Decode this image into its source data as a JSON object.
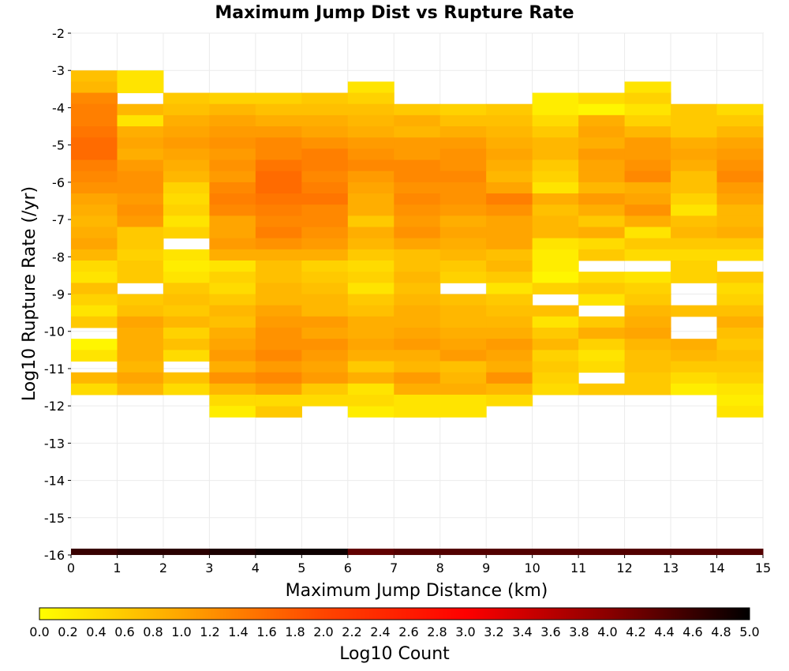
{
  "chart_data": {
    "type": "heatmap",
    "title": "Maximum Jump Dist vs Rupture Rate",
    "xlabel": "Maximum Jump Distance (km)",
    "ylabel": "Log10 Rupture Rate (/yr)",
    "xlim": [
      0,
      15
    ],
    "ylim": [
      -16,
      -2
    ],
    "x_ticks": [
      "0",
      "1",
      "2",
      "3",
      "4",
      "5",
      "6",
      "7",
      "8",
      "9",
      "10",
      "11",
      "12",
      "13",
      "14",
      "15"
    ],
    "y_ticks": [
      "-2",
      "-3",
      "-4",
      "-5",
      "-6",
      "-7",
      "-8",
      "-9",
      "-10",
      "-11",
      "-12",
      "-13",
      "-14",
      "-15",
      "-16"
    ],
    "x_bins": [
      0,
      1,
      2,
      3,
      4,
      5,
      6,
      7,
      8,
      9,
      10,
      11,
      12,
      13,
      14
    ],
    "y_bins": [
      -3.0,
      -3.3,
      -3.6,
      -3.9,
      -4.2,
      -4.5,
      -4.8,
      -5.1,
      -5.4,
      -5.7,
      -6.0,
      -6.3,
      -6.6,
      -6.9,
      -7.2,
      -7.5,
      -7.8,
      -8.1,
      -8.4,
      -8.7,
      -9.0,
      -9.3,
      -9.6,
      -9.9,
      -10.2,
      -10.5,
      -10.8,
      -11.1,
      -11.4,
      -11.7,
      -12.0
    ],
    "bin_width_x": 1,
    "bin_height_y": 0.3,
    "values": [
      [
        0.7,
        0.3,
        null,
        null,
        null,
        null,
        null,
        null,
        null,
        null,
        null,
        null,
        null,
        null,
        null
      ],
      [
        0.8,
        0.3,
        null,
        null,
        null,
        null,
        0.3,
        null,
        null,
        null,
        null,
        null,
        0.3,
        null,
        null
      ],
      [
        1.3,
        null,
        0.6,
        0.5,
        0.5,
        0.6,
        0.5,
        null,
        null,
        null,
        0.2,
        0.4,
        0.5,
        null,
        null
      ],
      [
        1.4,
        0.8,
        0.7,
        0.8,
        0.7,
        0.7,
        0.7,
        0.6,
        0.5,
        0.6,
        0.2,
        0.1,
        0.3,
        0.6,
        0.4
      ],
      [
        1.4,
        0.3,
        0.9,
        1.0,
        0.9,
        0.9,
        0.8,
        0.9,
        0.7,
        0.7,
        0.4,
        0.9,
        0.5,
        0.6,
        0.6
      ],
      [
        1.5,
        0.9,
        1.0,
        1.1,
        1.1,
        1.0,
        0.9,
        0.8,
        0.9,
        0.8,
        0.6,
        1.0,
        0.8,
        0.6,
        0.8
      ],
      [
        1.6,
        1.0,
        1.1,
        1.2,
        1.3,
        1.2,
        1.1,
        1.1,
        1.1,
        0.9,
        0.8,
        0.9,
        1.1,
        0.9,
        1.0
      ],
      [
        1.6,
        0.9,
        1.0,
        1.1,
        1.3,
        1.4,
        1.2,
        1.1,
        1.2,
        1.0,
        0.8,
        1.1,
        1.1,
        1.0,
        1.1
      ],
      [
        1.4,
        1.1,
        0.9,
        1.2,
        1.5,
        1.4,
        1.3,
        1.3,
        1.2,
        0.9,
        0.6,
        1.0,
        1.2,
        0.9,
        1.2
      ],
      [
        1.3,
        1.2,
        0.8,
        1.1,
        1.6,
        1.3,
        1.1,
        1.3,
        1.3,
        0.8,
        0.5,
        1.0,
        1.3,
        0.7,
        1.3
      ],
      [
        1.2,
        1.2,
        0.5,
        1.3,
        1.6,
        1.4,
        1.0,
        1.2,
        1.2,
        1.0,
        0.3,
        0.8,
        0.9,
        0.7,
        1.1
      ],
      [
        1.0,
        1.1,
        0.4,
        1.4,
        1.5,
        1.5,
        0.9,
        1.3,
        1.2,
        1.4,
        0.9,
        1.1,
        1.0,
        0.5,
        1.0
      ],
      [
        0.9,
        1.2,
        0.5,
        1.3,
        1.4,
        1.3,
        0.9,
        1.2,
        1.1,
        1.2,
        0.7,
        0.9,
        1.2,
        0.3,
        0.8
      ],
      [
        0.8,
        1.1,
        0.3,
        1.0,
        1.3,
        1.3,
        0.6,
        1.1,
        0.9,
        1.0,
        0.8,
        0.6,
        0.9,
        0.7,
        0.8
      ],
      [
        0.9,
        0.6,
        0.5,
        1.0,
        1.4,
        1.2,
        0.9,
        1.2,
        1.0,
        1.0,
        0.8,
        0.9,
        0.3,
        0.8,
        0.9
      ],
      [
        1.0,
        0.6,
        null,
        1.1,
        1.2,
        1.1,
        0.8,
        1.0,
        0.9,
        1.0,
        0.3,
        0.4,
        0.6,
        0.6,
        0.6
      ],
      [
        0.8,
        0.5,
        0.3,
        0.9,
        0.9,
        0.9,
        0.6,
        0.7,
        0.8,
        0.7,
        0.2,
        0.6,
        0.4,
        0.4,
        0.4
      ],
      [
        0.4,
        0.6,
        0.2,
        0.3,
        0.7,
        0.5,
        0.4,
        0.7,
        0.6,
        0.8,
        0.2,
        null,
        null,
        0.5,
        null
      ],
      [
        0.3,
        0.6,
        0.3,
        0.5,
        0.7,
        0.6,
        0.5,
        0.8,
        0.5,
        0.6,
        0.1,
        0.4,
        0.3,
        0.5,
        0.6
      ],
      [
        0.7,
        null,
        0.6,
        0.4,
        0.8,
        0.7,
        0.3,
        0.7,
        null,
        0.3,
        0.5,
        0.6,
        0.5,
        null,
        0.4
      ],
      [
        0.5,
        0.6,
        0.7,
        0.6,
        0.8,
        0.8,
        0.6,
        0.8,
        0.7,
        0.6,
        null,
        0.3,
        0.6,
        null,
        0.5
      ],
      [
        0.3,
        0.7,
        0.6,
        0.8,
        1.0,
        0.8,
        0.7,
        0.9,
        0.8,
        0.7,
        0.7,
        null,
        0.8,
        0.7,
        0.7
      ],
      [
        0.6,
        1.0,
        0.8,
        0.7,
        1.1,
        1.1,
        0.9,
        0.9,
        0.8,
        0.8,
        0.3,
        0.6,
        0.9,
        null,
        0.9
      ],
      [
        null,
        0.9,
        0.5,
        0.9,
        1.2,
        1.0,
        0.9,
        1.0,
        0.9,
        0.9,
        0.6,
        0.9,
        1.0,
        null,
        0.7
      ],
      [
        0.1,
        0.9,
        0.7,
        1.0,
        1.2,
        1.2,
        1.0,
        1.1,
        1.0,
        1.1,
        0.8,
        0.5,
        0.8,
        0.9,
        0.6
      ],
      [
        0.3,
        0.9,
        0.4,
        1.1,
        1.3,
        1.1,
        0.9,
        0.9,
        1.1,
        1.0,
        0.5,
        0.3,
        0.7,
        0.8,
        0.7
      ],
      [
        null,
        0.8,
        null,
        0.9,
        1.1,
        1.0,
        0.6,
        0.8,
        0.7,
        0.9,
        0.6,
        0.4,
        0.7,
        0.6,
        0.6
      ],
      [
        0.8,
        1.0,
        0.7,
        1.2,
        1.3,
        1.1,
        0.9,
        1.1,
        0.8,
        1.2,
        0.5,
        null,
        0.6,
        0.4,
        0.5
      ],
      [
        0.4,
        0.8,
        0.4,
        0.8,
        1.0,
        0.6,
        0.3,
        0.9,
        0.9,
        0.8,
        0.4,
        0.6,
        0.6,
        0.2,
        0.3
      ],
      [
        null,
        null,
        null,
        0.4,
        0.9,
        0.4,
        null,
        0.5,
        0.3,
        0.4,
        null,
        null,
        null,
        null,
        0.2
      ],
      [
        null,
        null,
        null,
        0.2,
        0.5,
        null,
        0.2,
        0.4,
        null,
        null,
        null,
        null,
        null,
        null,
        null
      ]
    ],
    "extra_rows": [
      {
        "y": -12.0,
        "bins": [
          4,
          7,
          8,
          14
        ],
        "values": [
          0.6,
          0.3,
          0.3,
          0.3
        ]
      },
      {
        "y": -11.7,
        "bins": [
          4,
          6,
          7
        ],
        "values": [
          0.4,
          0.4,
          0.3
        ]
      }
    ],
    "bottom_strip": {
      "y": -16.0,
      "values": [
        4.6,
        4.7,
        4.7,
        4.8,
        4.9,
        4.9,
        4.3,
        4.4,
        4.4,
        4.4,
        4.4,
        4.4,
        4.4,
        4.4,
        4.4
      ]
    },
    "colorbar": {
      "label": "Log10 Count",
      "min": 0.0,
      "max": 5.0,
      "ticks": [
        "0.0",
        "0.2",
        "0.4",
        "0.6",
        "0.8",
        "1.0",
        "1.2",
        "1.4",
        "1.6",
        "1.8",
        "2.0",
        "2.2",
        "2.4",
        "2.6",
        "2.8",
        "3.0",
        "3.2",
        "3.4",
        "3.6",
        "3.8",
        "4.0",
        "4.2",
        "4.4",
        "4.6",
        "4.8",
        "5.0"
      ],
      "colors": [
        "#ffff00",
        "#ffa500",
        "#ff4500",
        "#ff0000",
        "#8b0000",
        "#000000"
      ]
    },
    "grid": true
  }
}
